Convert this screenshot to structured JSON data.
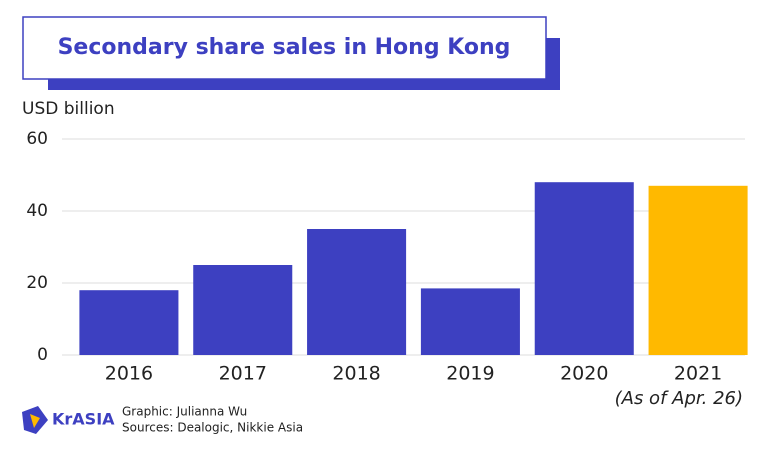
{
  "chart_data": {
    "type": "bar",
    "title": "Secondary share sales in Hong Kong",
    "y_label": "USD billion",
    "categories": [
      "2016",
      "2017",
      "2018",
      "2019",
      "2020",
      "2021"
    ],
    "values": [
      18,
      25,
      35,
      18.5,
      48,
      47
    ],
    "colors": [
      "#3d40c1",
      "#3d40c1",
      "#3d40c1",
      "#3d40c1",
      "#3d40c1",
      "#ffb900"
    ],
    "annotation": "(As of Apr. 26)",
    "ylim": [
      0,
      60
    ],
    "yticks": [
      0,
      20,
      40,
      60
    ],
    "grid": true
  },
  "footer": {
    "logo": "KrASIA",
    "credit": "Graphic: Julianna Wu",
    "sources": "Sources: Dealogic, Nikkie Asia"
  }
}
